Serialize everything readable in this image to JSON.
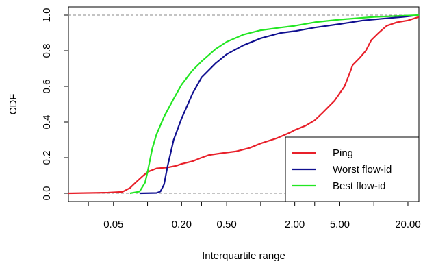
{
  "chart_data": {
    "type": "line",
    "title": "",
    "xlabel": "Interquartile range",
    "ylabel": "CDF",
    "x_scale": "log",
    "xlim": [
      0.02,
      25
    ],
    "ylim": [
      0,
      1
    ],
    "x_ticks": [
      0.05,
      0.2,
      0.5,
      2,
      5,
      20
    ],
    "x_tick_labels": [
      "0.05",
      "0.20",
      "0.50",
      "2.00",
      "5.00",
      "20.00"
    ],
    "y_ticks": [
      0,
      0.2,
      0.4,
      0.6,
      0.8,
      1.0
    ],
    "y_tick_labels": [
      "0.0",
      "0.2",
      "0.4",
      "0.6",
      "0.8",
      "1.0"
    ],
    "reference_lines": [
      0,
      1
    ],
    "grid": false,
    "legend_position": "bottom-right",
    "series": [
      {
        "name": "Ping",
        "color": "#e8202a",
        "points": [
          [
            0.02,
            0.0
          ],
          [
            0.03,
            0.002
          ],
          [
            0.045,
            0.004
          ],
          [
            0.06,
            0.008
          ],
          [
            0.07,
            0.03
          ],
          [
            0.08,
            0.065
          ],
          [
            0.09,
            0.095
          ],
          [
            0.1,
            0.12
          ],
          [
            0.12,
            0.14
          ],
          [
            0.15,
            0.145
          ],
          [
            0.18,
            0.155
          ],
          [
            0.2,
            0.165
          ],
          [
            0.25,
            0.18
          ],
          [
            0.3,
            0.2
          ],
          [
            0.35,
            0.215
          ],
          [
            0.45,
            0.225
          ],
          [
            0.6,
            0.235
          ],
          [
            0.8,
            0.255
          ],
          [
            1.0,
            0.28
          ],
          [
            1.4,
            0.31
          ],
          [
            1.8,
            0.34
          ],
          [
            2.0,
            0.355
          ],
          [
            2.5,
            0.38
          ],
          [
            3.0,
            0.41
          ],
          [
            3.5,
            0.45
          ],
          [
            4.5,
            0.52
          ],
          [
            5.5,
            0.6
          ],
          [
            6.0,
            0.66
          ],
          [
            6.5,
            0.72
          ],
          [
            7.5,
            0.76
          ],
          [
            8.5,
            0.8
          ],
          [
            9.5,
            0.86
          ],
          [
            11,
            0.9
          ],
          [
            13,
            0.94
          ],
          [
            16,
            0.96
          ],
          [
            20,
            0.97
          ],
          [
            25,
            0.99
          ]
        ]
      },
      {
        "name": "Worst flow-id",
        "color": "#101090",
        "points": [
          [
            0.085,
            0.0
          ],
          [
            0.12,
            0.002
          ],
          [
            0.13,
            0.01
          ],
          [
            0.14,
            0.05
          ],
          [
            0.15,
            0.15
          ],
          [
            0.17,
            0.3
          ],
          [
            0.2,
            0.42
          ],
          [
            0.25,
            0.56
          ],
          [
            0.3,
            0.65
          ],
          [
            0.4,
            0.73
          ],
          [
            0.5,
            0.78
          ],
          [
            0.7,
            0.83
          ],
          [
            1.0,
            0.87
          ],
          [
            1.5,
            0.9
          ],
          [
            2.0,
            0.91
          ],
          [
            3.0,
            0.93
          ],
          [
            5.0,
            0.95
          ],
          [
            8.0,
            0.97
          ],
          [
            12,
            0.98
          ],
          [
            18,
            0.99
          ],
          [
            25,
            1.0
          ]
        ]
      },
      {
        "name": "Best flow-id",
        "color": "#22e622",
        "points": [
          [
            0.07,
            0.0
          ],
          [
            0.085,
            0.01
          ],
          [
            0.095,
            0.06
          ],
          [
            0.1,
            0.12
          ],
          [
            0.11,
            0.25
          ],
          [
            0.12,
            0.33
          ],
          [
            0.14,
            0.43
          ],
          [
            0.17,
            0.53
          ],
          [
            0.2,
            0.61
          ],
          [
            0.25,
            0.69
          ],
          [
            0.3,
            0.74
          ],
          [
            0.4,
            0.81
          ],
          [
            0.5,
            0.85
          ],
          [
            0.7,
            0.89
          ],
          [
            1.0,
            0.915
          ],
          [
            1.5,
            0.93
          ],
          [
            2.0,
            0.94
          ],
          [
            3.0,
            0.96
          ],
          [
            5.0,
            0.975
          ],
          [
            10,
            0.99
          ],
          [
            25,
            1.0
          ]
        ]
      }
    ]
  }
}
